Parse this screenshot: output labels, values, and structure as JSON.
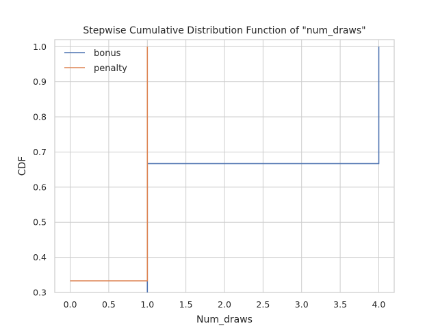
{
  "chart_data": {
    "type": "line",
    "step": true,
    "title": "Stepwise Cumulative Distribution Function of \"num_draws\"",
    "xlabel": "Num_draws",
    "ylabel": "CDF",
    "xlim": [
      -0.2,
      4.2
    ],
    "ylim": [
      0.3,
      1.02
    ],
    "x_ticks": [
      "0.0",
      "0.5",
      "1.0",
      "1.5",
      "2.0",
      "2.5",
      "3.0",
      "3.5",
      "4.0"
    ],
    "y_ticks": [
      "0.3",
      "0.4",
      "0.5",
      "0.6",
      "0.7",
      "0.8",
      "0.9",
      "1.0"
    ],
    "grid": true,
    "legend_position": "upper-left",
    "series": [
      {
        "name": "bonus",
        "color": "#4c72b0",
        "x": [
          1.0,
          1.0,
          4.0,
          4.0
        ],
        "y": [
          0.3,
          0.667,
          0.667,
          1.0
        ]
      },
      {
        "name": "penalty",
        "color": "#dd8452",
        "x": [
          0.0,
          1.0,
          1.0
        ],
        "y": [
          0.333,
          0.333,
          1.0
        ]
      }
    ]
  }
}
